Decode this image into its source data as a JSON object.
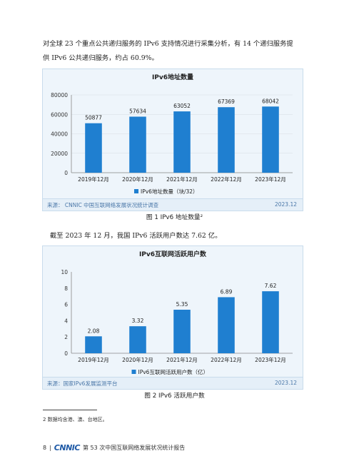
{
  "text": {
    "p1_line1": "对全球 23 个重点公共递归服务的 IPv6 支持情况进行采集分析，有 14 个递归服务提",
    "p1_line2": "供 IPv6 公共递归服务，约占 60.9%。",
    "p2": "截至 2023 年 12 月，我国 IPv6 活跃用户数达 7.62 亿。",
    "caption1": "图 1  IPv6 地址数量²",
    "caption2": "图 2  IPv6 活跃用户数",
    "footnote": "2    数据均含港、澳、台地区。",
    "page_number": "8",
    "logo": "CNNIC",
    "report_title": "第 53 次中国互联网络发展状况统计报告"
  },
  "chart1": {
    "source": "来源：  CNNIC  中国互联网络发展状况统计调查",
    "date": "2023.12"
  },
  "chart2": {
    "source": "来源：国家IPv6发展监测平台",
    "date": "2023.12"
  },
  "colors": {
    "bar": "#1f7fd0",
    "panel": "#eef5fb",
    "accent": "#4a77a8"
  },
  "chart_data": [
    {
      "type": "bar",
      "title": "IPv6地址数量",
      "categories": [
        "2019年12月",
        "2020年12月",
        "2021年12月",
        "2022年12月",
        "2023年12月"
      ],
      "series": [
        {
          "name": "IPv6地址数量（块/32）",
          "values": [
            50877,
            57634,
            63052,
            67369,
            68042
          ]
        }
      ],
      "ylim": [
        0,
        80000
      ],
      "yticks": [
        0,
        20000,
        40000,
        60000,
        80000
      ],
      "grid": true,
      "legend": "bottom"
    },
    {
      "type": "bar",
      "title": "IPv6互联网活跃用户数",
      "categories": [
        "2019年12月",
        "2020年12月",
        "2021年12月",
        "2022年12月",
        "2023年12月"
      ],
      "series": [
        {
          "name": "IPv6互联网活跃用户数（亿）",
          "values": [
            2.08,
            3.32,
            5.35,
            6.89,
            7.62
          ]
        }
      ],
      "ylim": [
        0,
        10
      ],
      "yticks": [
        0,
        2,
        4,
        6,
        8,
        10
      ],
      "grid": false,
      "legend": "bottom"
    }
  ]
}
